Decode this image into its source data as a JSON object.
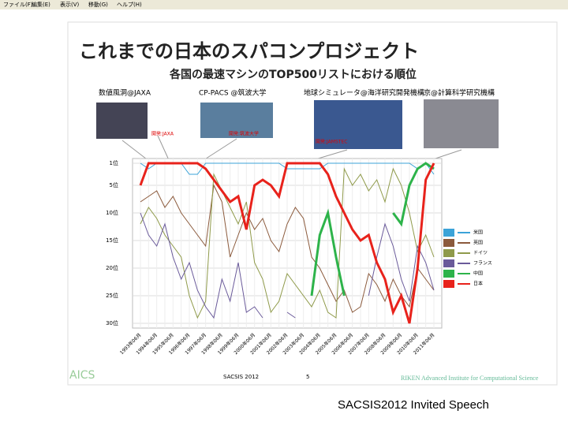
{
  "window": {
    "menu": [
      "ファイル(F)",
      "編集(E)",
      "表示(V)",
      "移動(G)",
      "ヘルプ(H)"
    ]
  },
  "slide": {
    "title": "これまでの日本のスパコンプロジェクト",
    "subtitle": "各国の最速マシンのTOP500リストにおける順位",
    "photos": [
      {
        "label": "数値風洞@JAXA",
        "dev": "開発:JAXA"
      },
      {
        "label": "CP-PACS @筑波大学",
        "dev": "開発:筑波大学"
      },
      {
        "label": "地球シミュレータ@海洋研究開発機構",
        "dev": "開発:JAMSTEC"
      },
      {
        "label": "京@計算科学研究機構"
      }
    ],
    "footer": {
      "logo": "AICS",
      "event": "SACSIS 2012",
      "page": "5",
      "institute": "RIKEN Advanced Institute for Computational Science"
    }
  },
  "caption": "SACSIS2012 Invited Speech",
  "chart_data": {
    "type": "line",
    "categories": [
      "1993年06月",
      null,
      "1994年06月",
      null,
      "1995年06月",
      null,
      "1996年06月",
      null,
      "1997年06月",
      null,
      "1998年06月",
      null,
      "1999年06月",
      null,
      "2000年06月",
      null,
      "2001年06月",
      null,
      "2002年06月",
      null,
      "2003年06月",
      null,
      "2004年06月",
      null,
      "2005年06月",
      null,
      "2006年06月",
      null,
      "2007年06月",
      null,
      "2008年06月",
      null,
      "2009年06月",
      null,
      "2010年06月",
      null,
      "2011年06月"
    ],
    "ylim": [
      30,
      1
    ],
    "yticks": [
      {
        "value": 1,
        "label": "1位"
      },
      {
        "value": 5,
        "label": "5位"
      },
      {
        "value": 10,
        "label": "10位"
      },
      {
        "value": 15,
        "label": "15位"
      },
      {
        "value": 20,
        "label": "20位"
      },
      {
        "value": 25,
        "label": "25位"
      },
      {
        "value": 30,
        "label": "30位"
      }
    ],
    "series": [
      {
        "name": "米国",
        "color": "#3ba3d8",
        "values": [
          1,
          2,
          1,
          1,
          1,
          1,
          3,
          3,
          1,
          1,
          1,
          1,
          1,
          1,
          1,
          1,
          1,
          1,
          2,
          2,
          2,
          2,
          2,
          1,
          1,
          1,
          1,
          1,
          1,
          1,
          1,
          1,
          1,
          1,
          2,
          1,
          3
        ]
      },
      {
        "name": "英国",
        "color": "#8b5a3c",
        "values": [
          8,
          7,
          6,
          9,
          7,
          10,
          12,
          14,
          16,
          5,
          8,
          18,
          14,
          10,
          13,
          11,
          15,
          17,
          12,
          9,
          11,
          18,
          20,
          23,
          26,
          24,
          28,
          27,
          21,
          23,
          26,
          22,
          25,
          27,
          20,
          22,
          24
        ]
      },
      {
        "name": "ドイツ",
        "color": "#8f9a4a",
        "values": [
          12,
          9,
          11,
          14,
          16,
          18,
          25,
          29,
          26,
          3,
          6,
          9,
          12,
          8,
          19,
          22,
          28,
          26,
          21,
          23,
          25,
          27,
          24,
          28,
          29,
          2,
          5,
          3,
          6,
          4,
          8,
          2,
          5,
          10,
          17,
          14,
          18
        ]
      },
      {
        "name": "フランス",
        "color": "#6a5a9a",
        "values": [
          10,
          14,
          16,
          12,
          18,
          22,
          19,
          24,
          27,
          29,
          22,
          26,
          19,
          28,
          27,
          29,
          null,
          null,
          28,
          29,
          null,
          null,
          null,
          null,
          null,
          null,
          null,
          null,
          25,
          18,
          12,
          16,
          22,
          26,
          16,
          19,
          24
        ]
      },
      {
        "name": "中国",
        "color": "#2db34a",
        "values": [
          null,
          null,
          null,
          null,
          null,
          null,
          null,
          null,
          null,
          null,
          null,
          null,
          null,
          null,
          null,
          null,
          null,
          null,
          null,
          null,
          null,
          25,
          14,
          10,
          18,
          25,
          null,
          null,
          null,
          null,
          null,
          10,
          12,
          5,
          2,
          1,
          2
        ]
      },
      {
        "name": "日本",
        "color": "#e8221b",
        "values": [
          5,
          1,
          1,
          1,
          1,
          1,
          1,
          1,
          2,
          4,
          6,
          8,
          7,
          13,
          5,
          4,
          5,
          7,
          1,
          1,
          1,
          1,
          1,
          3,
          7,
          10,
          13,
          15,
          14,
          19,
          22,
          28,
          25,
          30,
          20,
          4,
          1
        ]
      }
    ],
    "legend": "right",
    "grid": true
  }
}
